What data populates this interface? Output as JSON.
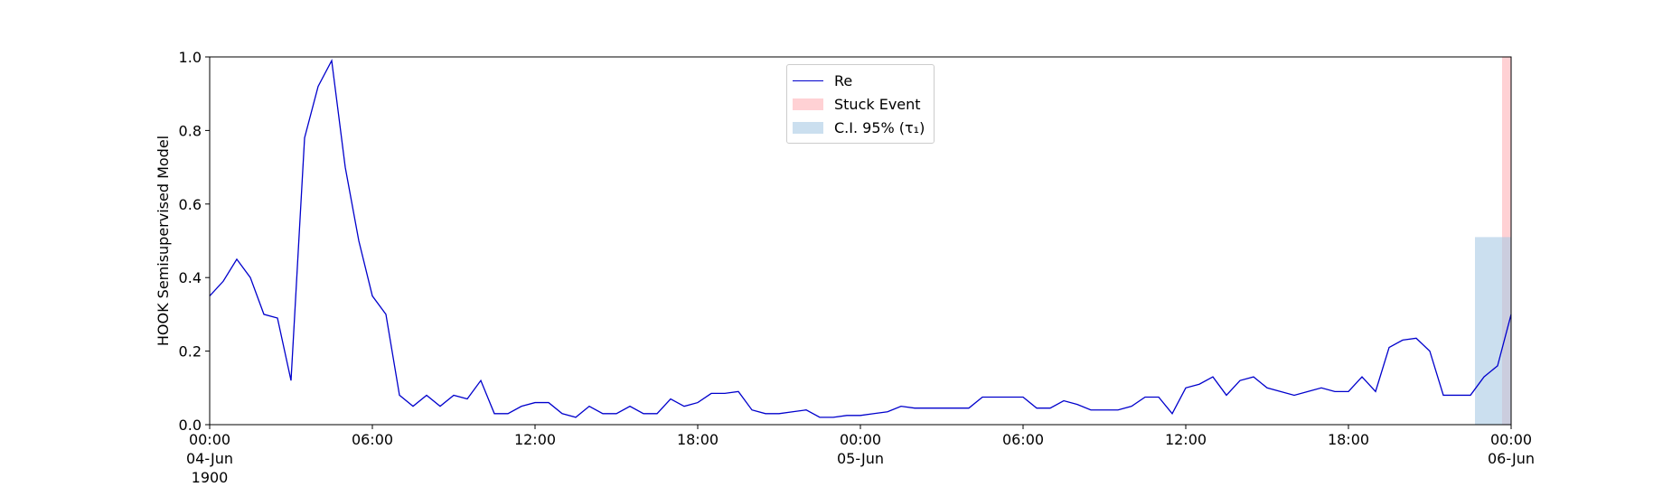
{
  "chart_data": {
    "type": "line",
    "ylabel": "HOOK Semisupervised Model",
    "x": [
      "1900-06-04T00:00",
      "1900-06-04T00:30",
      "1900-06-04T01:00",
      "1900-06-04T01:30",
      "1900-06-04T02:00",
      "1900-06-04T02:30",
      "1900-06-04T03:00",
      "1900-06-04T03:30",
      "1900-06-04T04:00",
      "1900-06-04T04:30",
      "1900-06-04T05:00",
      "1900-06-04T05:30",
      "1900-06-04T06:00",
      "1900-06-04T06:30",
      "1900-06-04T07:00",
      "1900-06-04T07:30",
      "1900-06-04T08:00",
      "1900-06-04T08:30",
      "1900-06-04T09:00",
      "1900-06-04T09:30",
      "1900-06-04T10:00",
      "1900-06-04T10:30",
      "1900-06-04T11:00",
      "1900-06-04T11:30",
      "1900-06-04T12:00",
      "1900-06-04T12:30",
      "1900-06-04T13:00",
      "1900-06-04T13:30",
      "1900-06-04T14:00",
      "1900-06-04T14:30",
      "1900-06-04T15:00",
      "1900-06-04T15:30",
      "1900-06-04T16:00",
      "1900-06-04T16:30",
      "1900-06-04T17:00",
      "1900-06-04T17:30",
      "1900-06-04T18:00",
      "1900-06-04T18:30",
      "1900-06-04T19:00",
      "1900-06-04T19:30",
      "1900-06-04T20:00",
      "1900-06-04T20:30",
      "1900-06-04T21:00",
      "1900-06-04T21:30",
      "1900-06-04T22:00",
      "1900-06-04T22:30",
      "1900-06-04T23:00",
      "1900-06-04T23:30",
      "1900-06-05T00:00",
      "1900-06-05T00:30",
      "1900-06-05T01:00",
      "1900-06-05T01:30",
      "1900-06-05T02:00",
      "1900-06-05T02:30",
      "1900-06-05T03:00",
      "1900-06-05T03:30",
      "1900-06-05T04:00",
      "1900-06-05T04:30",
      "1900-06-05T05:00",
      "1900-06-05T05:30",
      "1900-06-05T06:00",
      "1900-06-05T06:30",
      "1900-06-05T07:00",
      "1900-06-05T07:30",
      "1900-06-05T08:00",
      "1900-06-05T08:30",
      "1900-06-05T09:00",
      "1900-06-05T09:30",
      "1900-06-05T10:00",
      "1900-06-05T10:30",
      "1900-06-05T11:00",
      "1900-06-05T11:30",
      "1900-06-05T12:00",
      "1900-06-05T12:30",
      "1900-06-05T13:00",
      "1900-06-05T13:30",
      "1900-06-05T14:00",
      "1900-06-05T14:30",
      "1900-06-05T15:00",
      "1900-06-05T15:30",
      "1900-06-05T16:00",
      "1900-06-05T16:30",
      "1900-06-05T17:00",
      "1900-06-05T17:30",
      "1900-06-05T18:00",
      "1900-06-05T18:30",
      "1900-06-05T19:00",
      "1900-06-05T19:30",
      "1900-06-05T20:00",
      "1900-06-05T20:30",
      "1900-06-05T21:00",
      "1900-06-05T21:30",
      "1900-06-05T22:00",
      "1900-06-05T22:30",
      "1900-06-05T23:00",
      "1900-06-05T23:30",
      "1900-06-06T00:00"
    ],
    "series": [
      {
        "name": "Re",
        "color": "#0000cc",
        "values": [
          0.35,
          0.39,
          0.45,
          0.4,
          0.3,
          0.29,
          0.12,
          0.78,
          0.92,
          0.99,
          0.7,
          0.5,
          0.35,
          0.3,
          0.08,
          0.05,
          0.08,
          0.05,
          0.08,
          0.07,
          0.12,
          0.03,
          0.03,
          0.05,
          0.06,
          0.06,
          0.03,
          0.02,
          0.05,
          0.03,
          0.03,
          0.05,
          0.03,
          0.03,
          0.07,
          0.05,
          0.06,
          0.085,
          0.085,
          0.09,
          0.04,
          0.03,
          0.03,
          0.035,
          0.04,
          0.02,
          0.02,
          0.025,
          0.025,
          0.03,
          0.035,
          0.05,
          0.045,
          0.045,
          0.045,
          0.045,
          0.045,
          0.075,
          0.075,
          0.075,
          0.075,
          0.045,
          0.045,
          0.065,
          0.055,
          0.04,
          0.04,
          0.04,
          0.05,
          0.075,
          0.075,
          0.03,
          0.1,
          0.11,
          0.13,
          0.08,
          0.12,
          0.13,
          0.1,
          0.09,
          0.08,
          0.09,
          0.1,
          0.09,
          0.09,
          0.13,
          0.09,
          0.21,
          0.23,
          0.235,
          0.2,
          0.08,
          0.08,
          0.08,
          0.13,
          0.16,
          0.3
        ]
      }
    ],
    "spans": [
      {
        "name": "Stuck Event",
        "color": "#ffb3b8",
        "start": "1900-06-05T23:40",
        "end": "1900-06-06T00:00"
      },
      {
        "name": "C.I. 95% (τ₁)",
        "color": "#a9c9e4",
        "start": "1900-06-05T22:40",
        "end": "1900-06-06T00:00",
        "ymax": 0.51
      }
    ],
    "xlim": [
      "1900-06-04T00:00",
      "1900-06-06T00:00"
    ],
    "xticks": [
      {
        "value": "1900-06-04T00:00",
        "label": "00:00\n04-Jun\n1900"
      },
      {
        "value": "1900-06-04T06:00",
        "label": "06:00"
      },
      {
        "value": "1900-06-04T12:00",
        "label": "12:00"
      },
      {
        "value": "1900-06-04T18:00",
        "label": "18:00"
      },
      {
        "value": "1900-06-05T00:00",
        "label": "00:00\n05-Jun"
      },
      {
        "value": "1900-06-05T06:00",
        "label": "06:00"
      },
      {
        "value": "1900-06-05T12:00",
        "label": "12:00"
      },
      {
        "value": "1900-06-05T18:00",
        "label": "18:00"
      },
      {
        "value": "1900-06-06T00:00",
        "label": "00:00\n06-Jun"
      }
    ],
    "ylim": [
      0,
      1
    ],
    "yticks": [
      {
        "value": 0,
        "label": "0.0"
      },
      {
        "value": 0.2,
        "label": "0.2"
      },
      {
        "value": 0.4,
        "label": "0.4"
      },
      {
        "value": 0.6,
        "label": "0.6"
      },
      {
        "value": 0.8,
        "label": "0.8"
      },
      {
        "value": 1,
        "label": "1.0"
      }
    ],
    "legend": "upper center"
  }
}
